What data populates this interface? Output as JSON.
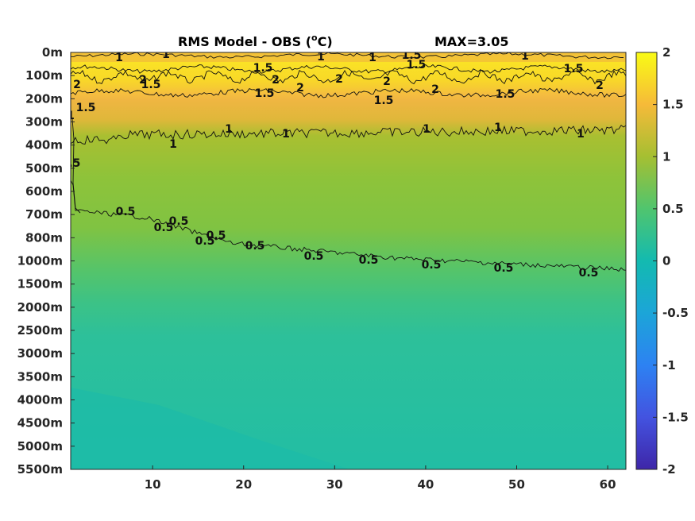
{
  "chart_data": {
    "type": "heatmap",
    "title": "RMS Model - OBS (°C)",
    "title_parts": {
      "main": "RMS Model - OBS (",
      "superscript": "o",
      "unit": "C)"
    },
    "annotation": "MAX=3.05",
    "x": {
      "range": [
        1,
        62
      ],
      "ticks": [
        10,
        20,
        30,
        40,
        50,
        60
      ],
      "tick_labels": [
        "10",
        "20",
        "30",
        "40",
        "50",
        "60"
      ]
    },
    "y": {
      "direction": "downward",
      "levels": [
        "0m",
        "100m",
        "200m",
        "300m",
        "400m",
        "500m",
        "600m",
        "700m",
        "800m",
        "1000m",
        "1500m",
        "2000m",
        "2500m",
        "3000m",
        "3500m",
        "4000m",
        "4500m",
        "5000m",
        "5500m"
      ]
    },
    "colorbar": {
      "range": [
        -2,
        2
      ],
      "ticks": [
        2,
        1.5,
        1,
        0.5,
        0,
        -0.5,
        -1,
        -1.5,
        -2
      ],
      "tick_labels": [
        "2",
        "1.5",
        "1",
        "0.5",
        "0",
        "-0.5",
        "-1",
        "-1.5",
        "-2"
      ],
      "colormap": "parula"
    },
    "contours": [
      {
        "level": 2,
        "labels": [
          "2",
          "2",
          "2",
          "2",
          "2",
          "2",
          "2",
          "2"
        ]
      },
      {
        "level": 1.5,
        "labels": [
          "1.5",
          "1.5",
          "1.5",
          "1.5",
          "1.5",
          "1.5",
          "1.5",
          "1.5",
          "1.5"
        ]
      },
      {
        "level": 1,
        "labels": [
          "1",
          "1",
          "1",
          "1",
          "1",
          "1",
          "1",
          "1",
          "1",
          "1",
          "1",
          "1"
        ]
      },
      {
        "level": 0.5,
        "labels": [
          "0.5",
          "0.5",
          "0.5",
          "0.5",
          "0.5",
          "0.5",
          "0.5",
          "0.5",
          "0.5",
          "0.5",
          "0.5",
          "0.5"
        ]
      }
    ],
    "field_by_level": [
      1.6,
      1.85,
      1.55,
      1.35,
      1.0,
      0.85,
      0.8,
      0.75,
      0.7,
      0.55,
      0.3,
      0.25,
      0.25,
      0.25,
      0.22,
      0.2,
      0.2,
      0.2,
      0.2
    ],
    "grid": false,
    "legend": "colorbar-right"
  }
}
